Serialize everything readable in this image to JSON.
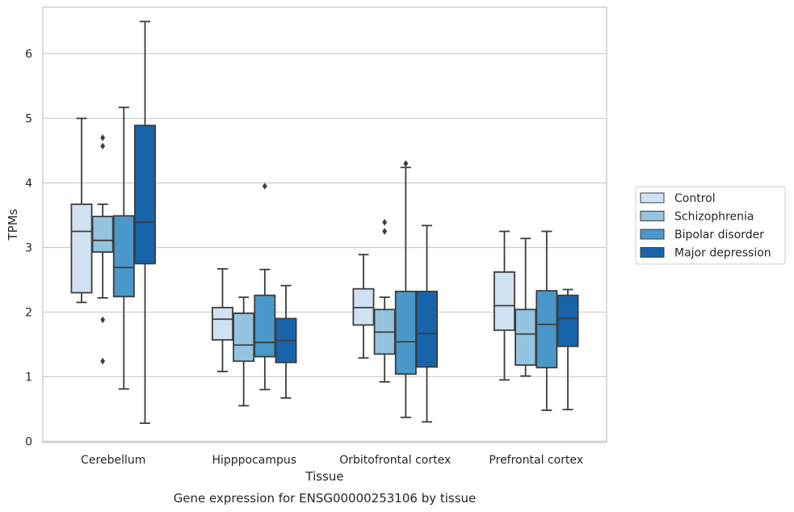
{
  "chart_data": {
    "type": "box",
    "title": "Gene expression for ENSG00000253106 by tissue",
    "xlabel": "Tissue",
    "ylabel": "TPMs",
    "ylim": [
      -0.02,
      6.72
    ],
    "yticks": [
      0,
      1,
      2,
      3,
      4,
      5,
      6
    ],
    "grid": "horizontal",
    "legend_position": "right",
    "categories": [
      "Cerebellum",
      "Hipppocampus",
      "Orbitofrontal cortex",
      "Prefrontal cortex"
    ],
    "series": [
      {
        "name": "Control",
        "color": "#d0e1f2",
        "boxes": [
          {
            "whislo": 2.15,
            "q1": 2.3,
            "med": 3.25,
            "q3": 3.67,
            "whishi": 5.0,
            "fliers": []
          },
          {
            "whislo": 1.08,
            "q1": 1.57,
            "med": 1.89,
            "q3": 2.07,
            "whishi": 2.67,
            "fliers": []
          },
          {
            "whislo": 1.29,
            "q1": 1.8,
            "med": 2.07,
            "q3": 2.36,
            "whishi": 2.89,
            "fliers": []
          },
          {
            "whislo": 0.95,
            "q1": 1.72,
            "med": 2.1,
            "q3": 2.62,
            "whishi": 3.25,
            "fliers": []
          }
        ]
      },
      {
        "name": "Schizophrenia",
        "color": "#94c4df",
        "boxes": [
          {
            "whislo": 2.22,
            "q1": 2.93,
            "med": 3.11,
            "q3": 3.48,
            "whishi": 3.67,
            "fliers": [
              4.57,
              4.7,
              1.88,
              1.24
            ]
          },
          {
            "whislo": 0.55,
            "q1": 1.24,
            "med": 1.49,
            "q3": 1.98,
            "whishi": 2.23,
            "fliers": []
          },
          {
            "whislo": 0.92,
            "q1": 1.35,
            "med": 1.69,
            "q3": 2.04,
            "whishi": 2.23,
            "fliers": [
              3.25,
              3.39
            ]
          },
          {
            "whislo": 1.01,
            "q1": 1.18,
            "med": 1.66,
            "q3": 2.04,
            "whishi": 3.14,
            "fliers": []
          }
        ]
      },
      {
        "name": "Bipolar disorder",
        "color": "#4a98c9",
        "boxes": [
          {
            "whislo": 0.81,
            "q1": 2.24,
            "med": 2.69,
            "q3": 3.49,
            "whishi": 5.17,
            "fliers": []
          },
          {
            "whislo": 0.8,
            "q1": 1.31,
            "med": 1.53,
            "q3": 2.26,
            "whishi": 2.66,
            "fliers": [
              3.95
            ]
          },
          {
            "whislo": 0.37,
            "q1": 1.04,
            "med": 1.54,
            "q3": 2.32,
            "whishi": 4.24,
            "fliers": [
              4.3
            ]
          },
          {
            "whislo": 0.48,
            "q1": 1.14,
            "med": 1.81,
            "q3": 2.33,
            "whishi": 3.25,
            "fliers": []
          }
        ]
      },
      {
        "name": "Major depression",
        "color": "#1764ab",
        "boxes": [
          {
            "whislo": 0.28,
            "q1": 2.75,
            "med": 3.39,
            "q3": 4.89,
            "whishi": 6.5,
            "fliers": []
          },
          {
            "whislo": 0.67,
            "q1": 1.22,
            "med": 1.56,
            "q3": 1.9,
            "whishi": 2.41,
            "fliers": []
          },
          {
            "whislo": 0.3,
            "q1": 1.15,
            "med": 1.67,
            "q3": 2.32,
            "whishi": 3.34,
            "fliers": []
          },
          {
            "whislo": 0.49,
            "q1": 1.47,
            "med": 1.9,
            "q3": 2.26,
            "whishi": 2.35,
            "fliers": []
          }
        ]
      }
    ]
  },
  "colors": {
    "grid": "#cccccc",
    "frame": "#cccccc",
    "edge": "#3d3d3d",
    "text": "#262626"
  }
}
